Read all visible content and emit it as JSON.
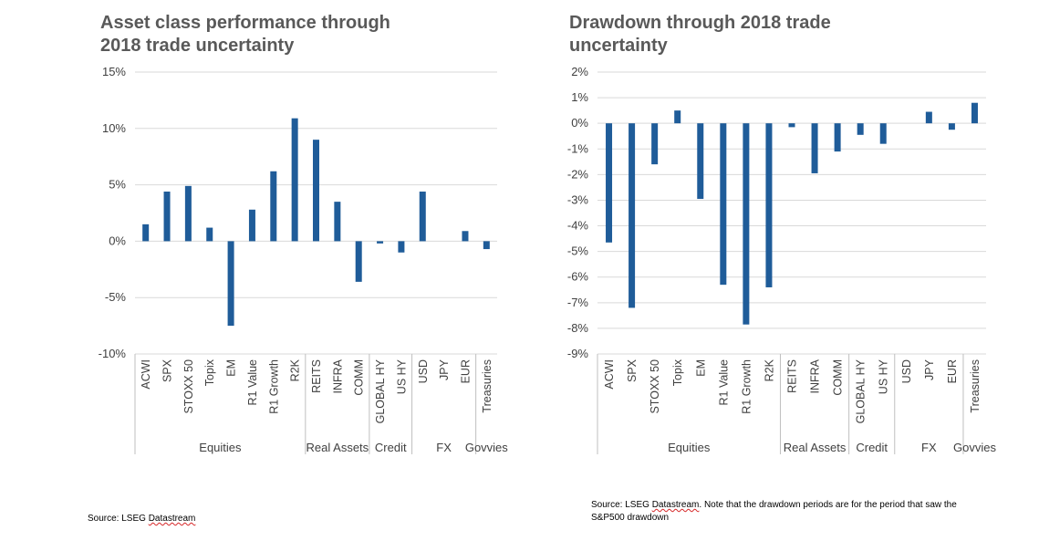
{
  "titles": {
    "left": "Asset class performance through\n2018 trade uncertainty",
    "right": "Drawdown through 2018 trade\nuncertainty"
  },
  "sources": {
    "left_prefix": "Source: LSEG ",
    "left_ds": "Datastream",
    "right_prefix": "Source: LSEG ",
    "right_ds": "Datastream",
    "right_rest": ". Note that the drawdown periods are for the period that saw the S&P500 drawdown"
  },
  "colors": {
    "bar": "#1f5c99",
    "grid": "#d9d9d9",
    "axis": "#bfbfbf"
  },
  "chart_data": [
    {
      "type": "bar",
      "title": "Asset class performance through 2018 trade uncertainty",
      "categories": [
        "ACWI",
        "SPX",
        "STOXX 50",
        "Topix",
        "EM",
        "R1 Value",
        "R1 Growth",
        "R2K",
        "REITS",
        "INFRA",
        "COMM",
        "GLOBAL HY",
        "US HY",
        "USD",
        "JPY",
        "EUR",
        "Treasuries"
      ],
      "values": [
        1.5,
        4.4,
        4.9,
        1.2,
        -7.5,
        2.8,
        6.2,
        10.9,
        9.0,
        3.5,
        -3.6,
        -0.2,
        -1.0,
        4.4,
        0.0,
        0.9,
        -0.7
      ],
      "groups": [
        {
          "name": "Equities",
          "count": 8
        },
        {
          "name": "Real Assets",
          "count": 3
        },
        {
          "name": "Credit",
          "count": 2
        },
        {
          "name": "FX",
          "count": 3
        },
        {
          "name": "Govvies",
          "count": 1
        }
      ],
      "yticks": [
        -10,
        -5,
        0,
        5,
        10,
        15
      ],
      "ytick_labels": [
        "-10%",
        "-5%",
        "0%",
        "5%",
        "10%",
        "15%"
      ],
      "ylim": [
        -10,
        15
      ],
      "grid": true,
      "legend": "none"
    },
    {
      "type": "bar",
      "title": "Drawdown through 2018 trade uncertainty",
      "categories": [
        "ACWI",
        "SPX",
        "STOXX 50",
        "Topix",
        "EM",
        "R1 Value",
        "R1 Growth",
        "R2K",
        "REITS",
        "INFRA",
        "COMM",
        "GLOBAL HY",
        "US HY",
        "USD",
        "JPY",
        "EUR",
        "Treasuries"
      ],
      "values": [
        -4.65,
        -7.2,
        -1.6,
        0.5,
        -2.95,
        -6.3,
        -7.85,
        -6.4,
        -0.15,
        -1.95,
        -1.1,
        -0.45,
        -0.8,
        0.0,
        0.45,
        -0.25,
        0.8
      ],
      "groups": [
        {
          "name": "Equities",
          "count": 8
        },
        {
          "name": "Real Assets",
          "count": 3
        },
        {
          "name": "Credit",
          "count": 2
        },
        {
          "name": "FX",
          "count": 3
        },
        {
          "name": "Govvies",
          "count": 1
        }
      ],
      "yticks": [
        -9,
        -8,
        -7,
        -6,
        -5,
        -4,
        -3,
        -2,
        -1,
        0,
        1,
        2
      ],
      "ytick_labels": [
        "-9%",
        "-8%",
        "-7%",
        "-6%",
        "-5%",
        "-4%",
        "-3%",
        "-2%",
        "-1%",
        "0%",
        "1%",
        "2%"
      ],
      "ylim": [
        -9,
        2
      ],
      "grid": true,
      "legend": "none"
    }
  ]
}
